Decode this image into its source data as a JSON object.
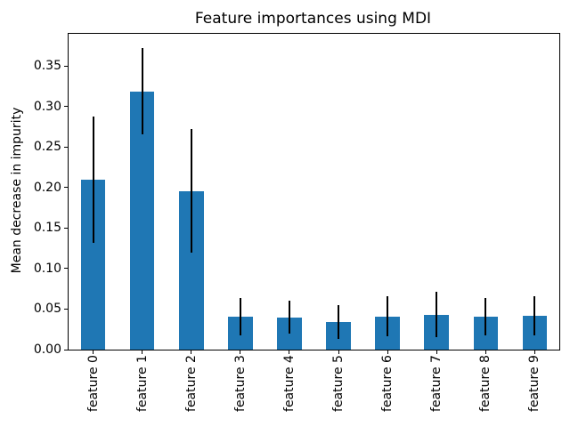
{
  "chart_data": {
    "type": "bar",
    "title": "Feature importances using MDI",
    "ylabel": "Mean decrease in impurity",
    "xlabel": "",
    "categories": [
      "feature 0",
      "feature 1",
      "feature 2",
      "feature 3",
      "feature 4",
      "feature 5",
      "feature 6",
      "feature 7",
      "feature 8",
      "feature 9"
    ],
    "series": [
      {
        "name": "mean decrease in impurity",
        "values": [
          0.21,
          0.319,
          0.196,
          0.041,
          0.04,
          0.034,
          0.041,
          0.043,
          0.041,
          0.042
        ],
        "error_bars": [
          0.078,
          0.053,
          0.076,
          0.023,
          0.02,
          0.021,
          0.025,
          0.028,
          0.023,
          0.024
        ]
      }
    ],
    "ylim": [
      0,
      0.39
    ],
    "ytick_labels": [
      "0.00",
      "0.05",
      "0.10",
      "0.15",
      "0.20",
      "0.25",
      "0.30",
      "0.35"
    ],
    "x_tick_rotation_deg": 90,
    "grid": false,
    "legend": false,
    "bar_color": "#1f77b4",
    "error_bar_color": "#000000",
    "text_color": "#000000",
    "background_color": "#ffffff"
  }
}
